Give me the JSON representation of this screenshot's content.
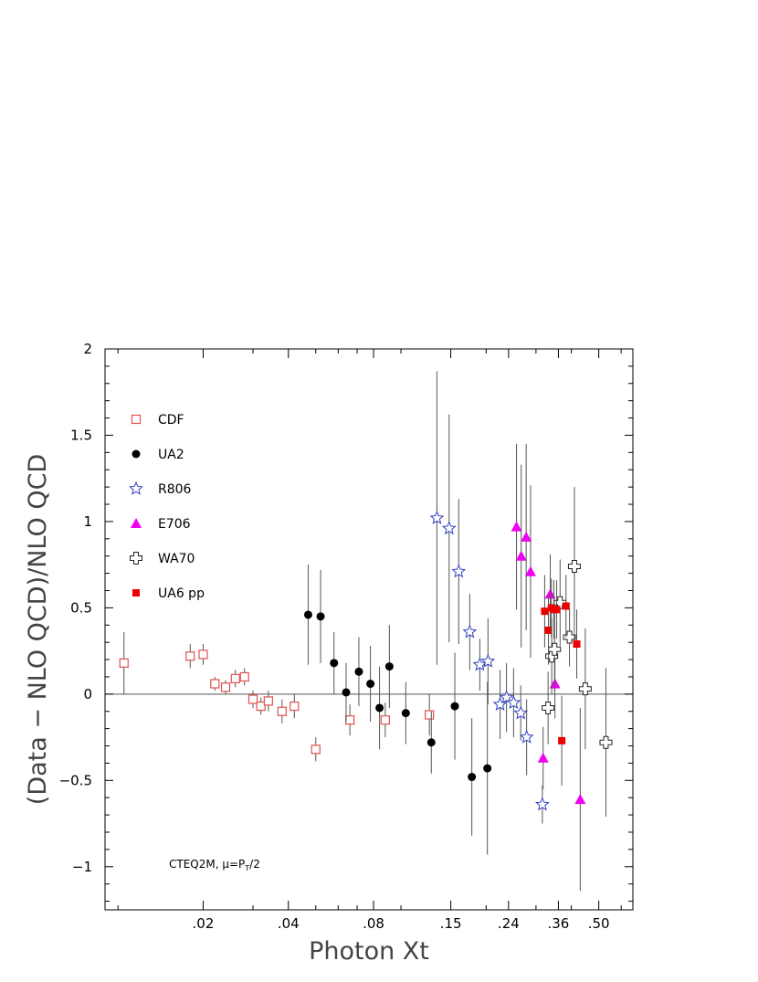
{
  "chart_data": {
    "type": "scatter",
    "title": "",
    "xlabel": "Photon Xt",
    "ylabel": "(Data − NLO QCD)/NLO QCD",
    "x_tick_labels": [
      ".02",
      ".04",
      ".08",
      ".15",
      ".24",
      ".36",
      ".50"
    ],
    "y_tick_labels": [
      "−1",
      "−0.5",
      "0",
      "0.5",
      "1",
      "1.5",
      "2"
    ],
    "y_ticks": [
      -1,
      -0.5,
      0,
      0.5,
      1,
      1.5,
      2
    ],
    "ylim": [
      -1.25,
      2
    ],
    "reference_line_y": 0,
    "annotation": "CTEQ2M, μ=P",
    "annotation_sub": "T",
    "annotation_tail": "/2",
    "legend_position": "top-left",
    "series": [
      {
        "name": "CDF",
        "marker": "open-square",
        "color": "#e05050",
        "x": [
          0.0105,
          0.018,
          0.02,
          0.022,
          0.024,
          0.026,
          0.028,
          0.03,
          0.032,
          0.034,
          0.038,
          0.042,
          0.05,
          0.066,
          0.088,
          0.126
        ],
        "y": [
          0.18,
          0.22,
          0.23,
          0.06,
          0.04,
          0.09,
          0.1,
          -0.03,
          -0.07,
          -0.04,
          -0.1,
          -0.07,
          -0.32,
          -0.15,
          -0.15,
          -0.12
        ],
        "yerr": [
          0.18,
          0.07,
          0.06,
          0.04,
          0.04,
          0.05,
          0.05,
          0.05,
          0.05,
          0.06,
          0.07,
          0.07,
          0.07,
          0.09,
          0.1,
          0.12
        ]
      },
      {
        "name": "UA2",
        "marker": "filled-circle",
        "color": "#000000",
        "x": [
          0.047,
          0.052,
          0.058,
          0.064,
          0.071,
          0.078,
          0.084,
          0.091,
          0.104,
          0.128,
          0.155,
          0.178,
          0.202
        ],
        "y": [
          0.46,
          0.45,
          0.18,
          0.01,
          0.13,
          0.06,
          -0.08,
          0.16,
          -0.11,
          -0.28,
          -0.07,
          -0.48,
          -0.43
        ],
        "yerr": [
          0.29,
          0.27,
          0.18,
          0.17,
          0.2,
          0.22,
          0.24,
          0.24,
          0.18,
          0.18,
          0.31,
          0.34,
          0.5
        ]
      },
      {
        "name": "R806",
        "marker": "open-star",
        "color": "#3040c0",
        "x": [
          0.134,
          0.148,
          0.16,
          0.175,
          0.19,
          0.203,
          0.224,
          0.236,
          0.25,
          0.265,
          0.278,
          0.316
        ],
        "y": [
          1.02,
          0.96,
          0.71,
          0.36,
          0.17,
          0.19,
          -0.06,
          -0.02,
          -0.05,
          -0.11,
          -0.25,
          -0.64
        ],
        "yerr": [
          0.85,
          0.66,
          0.42,
          0.22,
          0.15,
          0.25,
          0.2,
          0.2,
          0.2,
          0.16,
          0.22,
          0.11
        ]
      },
      {
        "name": "E706",
        "marker": "filled-triangle",
        "color": "#f000f0",
        "x": [
          0.256,
          0.266,
          0.277,
          0.287,
          0.318,
          0.337,
          0.35,
          0.43
        ],
        "y": [
          0.97,
          0.8,
          0.91,
          0.71,
          -0.37,
          0.58,
          0.06,
          -0.61
        ],
        "yerr": [
          0.48,
          0.53,
          0.54,
          0.5,
          0.18,
          0.23,
          0.2,
          0.53
        ]
      },
      {
        "name": "WA70",
        "marker": "open-cross",
        "color": "#222222",
        "x": [
          0.331,
          0.341,
          0.349,
          0.365,
          0.394,
          0.41,
          0.448,
          0.53
        ],
        "y": [
          -0.08,
          0.22,
          0.26,
          0.53,
          0.33,
          0.74,
          0.03,
          -0.28
        ],
        "yerr": [
          0.21,
          0.22,
          0.24,
          0.25,
          0.17,
          0.46,
          0.35,
          0.43
        ]
      },
      {
        "name": "UA6 pp",
        "marker": "filled-square",
        "color": "#ee0000",
        "x": [
          0.322,
          0.332,
          0.34,
          0.347,
          0.355,
          0.37,
          0.383,
          0.418
        ],
        "y": [
          0.48,
          0.37,
          0.5,
          0.49,
          0.49,
          -0.27,
          0.51,
          0.29
        ],
        "yerr": [
          0.21,
          0.2,
          0.17,
          0.17,
          0.17,
          0.26,
          0.18,
          0.2
        ]
      }
    ]
  }
}
